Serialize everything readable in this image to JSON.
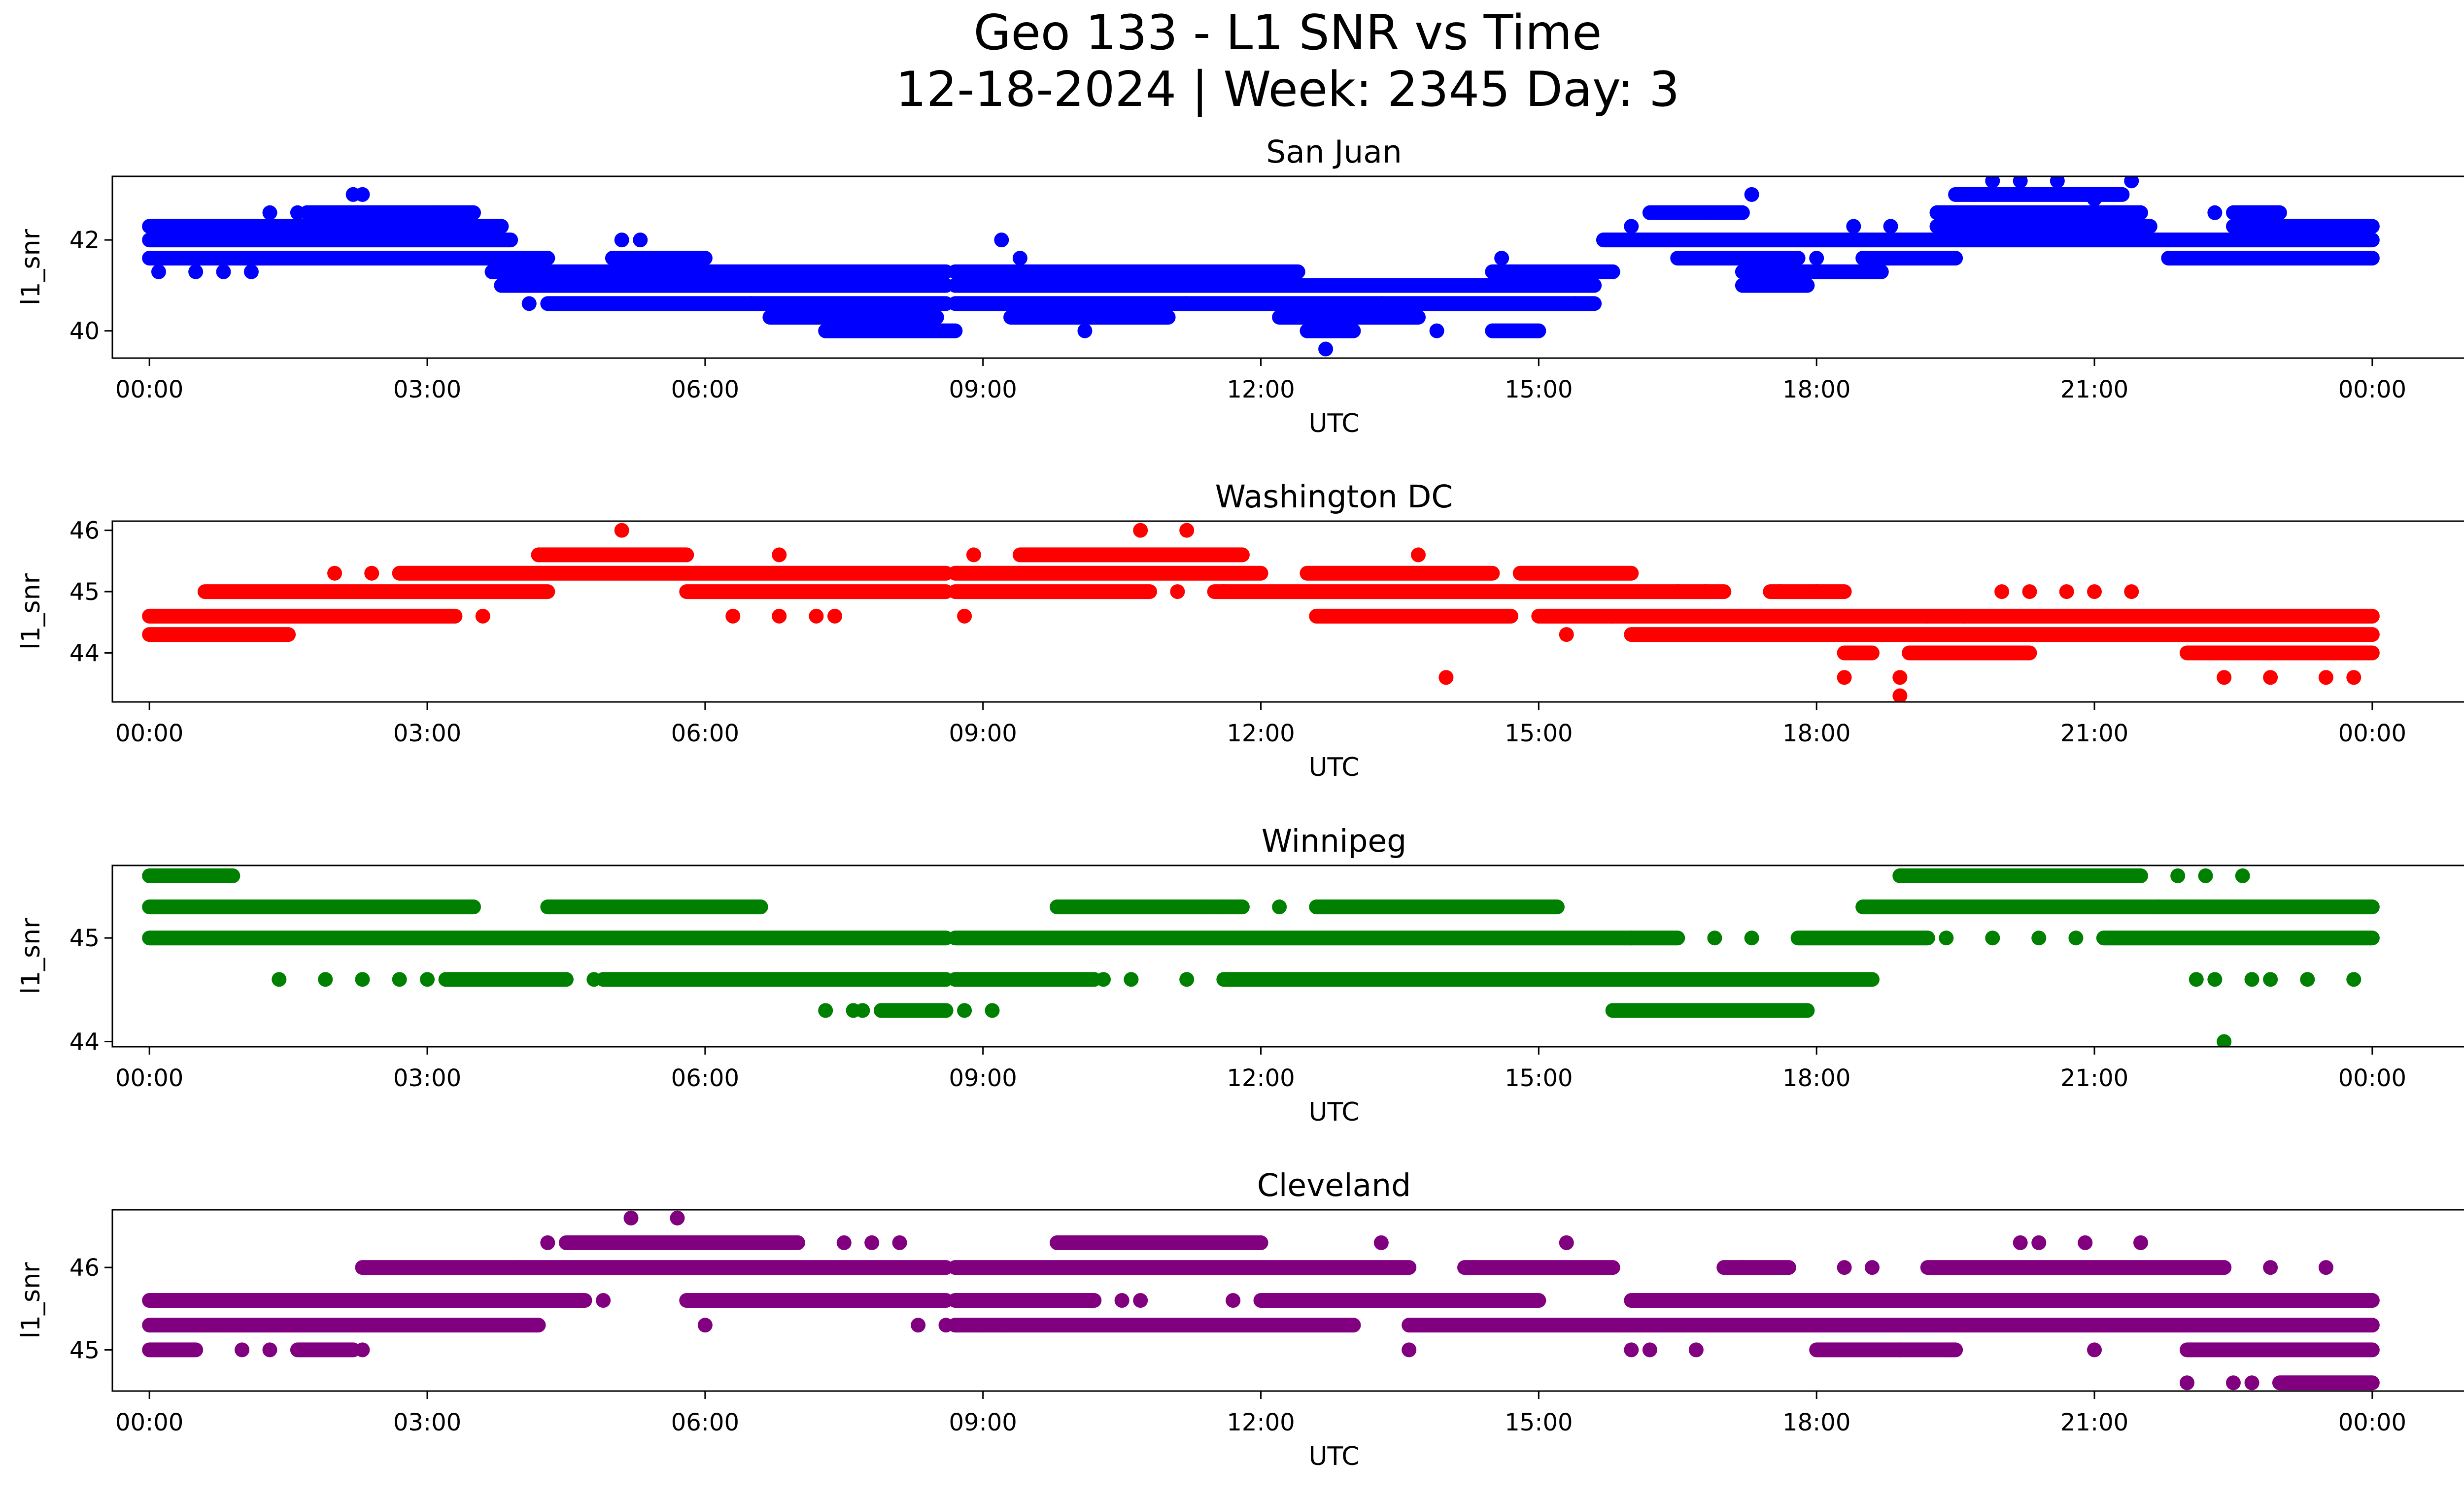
{
  "figure": {
    "title_line1": "Geo 133 - L1 SNR vs Time",
    "title_line2": "12-18-2024 | Week: 2345 Day: 3"
  },
  "chart_data": [
    {
      "type": "scatter",
      "title": "San Juan",
      "xlabel": "UTC",
      "ylabel": "l1_snr",
      "color": "#0000ff",
      "x_unit": "hours UTC",
      "xlim": [
        -0.4,
        25.98
      ],
      "ylim": [
        39.4,
        43.4
      ],
      "xticks": [
        0,
        3,
        6,
        9,
        12,
        15,
        18,
        21,
        24
      ],
      "xtick_labels": [
        "00:00",
        "03:00",
        "06:00",
        "09:00",
        "12:00",
        "15:00",
        "18:00",
        "21:00",
        "00:00"
      ],
      "yticks": [
        40,
        42
      ],
      "ytick_labels": [
        "40",
        "42"
      ],
      "bands": [
        {
          "y": 42.3,
          "segments": [
            [
              0.0,
              3.8
            ],
            [
              19.3,
              21.6
            ],
            [
              22.5,
              24.0
            ]
          ]
        },
        {
          "y": 42.0,
          "segments": [
            [
              0.0,
              3.9
            ],
            [
              15.7,
              24.0
            ]
          ]
        },
        {
          "y": 41.6,
          "segments": [
            [
              0.0,
              4.3
            ],
            [
              5.0,
              6.0
            ],
            [
              16.5,
              17.8
            ],
            [
              18.5,
              19.5
            ],
            [
              21.8,
              24.0
            ]
          ]
        },
        {
          "y": 41.3,
          "segments": [
            [
              3.7,
              8.6
            ],
            [
              8.7,
              12.4
            ],
            [
              14.5,
              15.8
            ],
            [
              17.2,
              18.7
            ]
          ]
        },
        {
          "y": 41.0,
          "segments": [
            [
              3.8,
              8.6
            ],
            [
              8.7,
              15.6
            ],
            [
              17.2,
              17.9
            ]
          ]
        },
        {
          "y": 40.6,
          "segments": [
            [
              4.3,
              8.6
            ],
            [
              8.7,
              15.6
            ]
          ]
        },
        {
          "y": 40.3,
          "segments": [
            [
              6.7,
              8.5
            ],
            [
              9.3,
              11.0
            ],
            [
              12.2,
              13.7
            ]
          ]
        },
        {
          "y": 42.6,
          "segments": [
            [
              1.7,
              3.5
            ],
            [
              16.2,
              17.2
            ],
            [
              19.3,
              21.5
            ],
            [
              22.5,
              23.0
            ]
          ]
        },
        {
          "y": 43.0,
          "segments": [
            [
              19.5,
              21.3
            ]
          ]
        },
        {
          "y": 40.0,
          "segments": [
            [
              7.3,
              8.7
            ],
            [
              12.5,
              13.0
            ],
            [
              14.5,
              15.0
            ]
          ]
        }
      ],
      "points": [
        [
          2.2,
          43.0
        ],
        [
          2.3,
          43.0
        ],
        [
          17.3,
          43.0
        ],
        [
          19.7,
          43.0
        ],
        [
          9.2,
          42.0
        ],
        [
          5.1,
          42.0
        ],
        [
          5.3,
          42.0
        ],
        [
          4.1,
          40.6
        ],
        [
          12.7,
          39.6
        ],
        [
          13.9,
          40.0
        ],
        [
          10.1,
          40.0
        ],
        [
          11.2,
          40.6
        ],
        [
          9.4,
          41.6
        ],
        [
          14.6,
          41.6
        ],
        [
          1.3,
          42.6
        ],
        [
          1.6,
          42.6
        ],
        [
          2.1,
          42.6
        ],
        [
          3.1,
          42.6
        ],
        [
          0.1,
          41.3
        ],
        [
          0.5,
          41.3
        ],
        [
          0.8,
          41.3
        ],
        [
          1.1,
          41.3
        ],
        [
          21.4,
          43.3
        ],
        [
          20.2,
          43.3
        ],
        [
          19.9,
          43.3
        ],
        [
          18.8,
          42.3
        ],
        [
          22.3,
          42.6
        ],
        [
          22.9,
          42.3
        ],
        [
          23.7,
          41.6
        ],
        [
          6.5,
          40.6
        ],
        [
          7.1,
          40.3
        ],
        [
          7.7,
          40.0
        ],
        [
          8.1,
          40.0
        ],
        [
          8.4,
          40.0
        ],
        [
          12.9,
          40.3
        ],
        [
          13.3,
          40.6
        ],
        [
          15.4,
          40.6
        ],
        [
          16.0,
          42.3
        ],
        [
          16.8,
          42.6
        ],
        [
          17.6,
          41.0
        ],
        [
          18.0,
          41.6
        ],
        [
          18.4,
          42.3
        ],
        [
          20.6,
          43.3
        ],
        [
          21.0,
          42.9
        ]
      ]
    },
    {
      "type": "scatter",
      "title": "Washington DC",
      "xlabel": "UTC",
      "ylabel": "l1_snr",
      "color": "#ff0000",
      "x_unit": "hours UTC",
      "xlim": [
        -0.4,
        25.98
      ],
      "ylim": [
        43.2,
        46.15
      ],
      "xticks": [
        0,
        3,
        6,
        9,
        12,
        15,
        18,
        21,
        24
      ],
      "xtick_labels": [
        "00:00",
        "03:00",
        "06:00",
        "09:00",
        "12:00",
        "15:00",
        "18:00",
        "21:00",
        "00:00"
      ],
      "yticks": [
        44,
        45,
        46
      ],
      "ytick_labels": [
        "44",
        "45",
        "46"
      ],
      "bands": [
        {
          "y": 44.6,
          "segments": [
            [
              0.0,
              3.3
            ],
            [
              12.6,
              14.7
            ],
            [
              15.0,
              24.0
            ]
          ]
        },
        {
          "y": 44.3,
          "segments": [
            [
              0.0,
              1.5
            ],
            [
              16.0,
              24.0
            ]
          ]
        },
        {
          "y": 45.0,
          "segments": [
            [
              0.6,
              4.3
            ],
            [
              5.8,
              8.6
            ],
            [
              8.7,
              10.8
            ],
            [
              11.5,
              17.0
            ],
            [
              17.5,
              18.3
            ]
          ]
        },
        {
          "y": 45.3,
          "segments": [
            [
              2.7,
              8.6
            ],
            [
              8.7,
              12.0
            ],
            [
              12.5,
              14.5
            ],
            [
              14.8,
              16.0
            ]
          ]
        },
        {
          "y": 45.6,
          "segments": [
            [
              4.2,
              5.8
            ],
            [
              9.4,
              11.8
            ]
          ]
        },
        {
          "y": 44.0,
          "segments": [
            [
              18.3,
              18.6
            ],
            [
              19.0,
              20.3
            ],
            [
              22.0,
              24.0
            ]
          ]
        }
      ],
      "points": [
        [
          5.1,
          46.0
        ],
        [
          10.7,
          46.0
        ],
        [
          11.2,
          46.0
        ],
        [
          14.0,
          43.6
        ],
        [
          18.3,
          43.6
        ],
        [
          18.9,
          43.6
        ],
        [
          18.9,
          43.3
        ],
        [
          21.0,
          45.0
        ],
        [
          20.3,
          45.0
        ],
        [
          20.0,
          45.0
        ],
        [
          21.4,
          45.0
        ],
        [
          20.7,
          45.0
        ],
        [
          19.2,
          44.6
        ],
        [
          19.6,
          44.6
        ],
        [
          22.4,
          43.6
        ],
        [
          22.9,
          43.6
        ],
        [
          23.5,
          43.6
        ],
        [
          23.8,
          43.6
        ],
        [
          2.0,
          45.3
        ],
        [
          2.4,
          45.3
        ],
        [
          3.6,
          44.6
        ],
        [
          6.3,
          44.6
        ],
        [
          6.8,
          44.6
        ],
        [
          7.2,
          44.6
        ],
        [
          7.4,
          44.6
        ],
        [
          6.8,
          45.6
        ],
        [
          8.8,
          44.6
        ],
        [
          8.9,
          45.6
        ],
        [
          13.7,
          45.6
        ],
        [
          15.3,
          44.3
        ],
        [
          15.8,
          44.6
        ],
        [
          17.6,
          45.0
        ],
        [
          18.0,
          45.0
        ],
        [
          16.5,
          45.0
        ],
        [
          16.8,
          45.0
        ],
        [
          11.1,
          45.0
        ],
        [
          11.6,
          45.0
        ]
      ]
    },
    {
      "type": "scatter",
      "title": "Winnipeg",
      "xlabel": "UTC",
      "ylabel": "l1_snr",
      "color": "#008000",
      "x_unit": "hours UTC",
      "xlim": [
        -0.4,
        25.98
      ],
      "ylim": [
        43.95,
        45.7
      ],
      "xticks": [
        0,
        3,
        6,
        9,
        12,
        15,
        18,
        21,
        24
      ],
      "xtick_labels": [
        "00:00",
        "03:00",
        "06:00",
        "09:00",
        "12:00",
        "15:00",
        "18:00",
        "21:00",
        "00:00"
      ],
      "yticks": [
        44,
        45
      ],
      "ytick_labels": [
        "44",
        "45"
      ],
      "bands": [
        {
          "y": 45.6,
          "segments": [
            [
              0.0,
              0.9
            ],
            [
              18.9,
              21.5
            ]
          ]
        },
        {
          "y": 45.3,
          "segments": [
            [
              0.0,
              3.5
            ],
            [
              4.3,
              6.6
            ],
            [
              9.8,
              11.8
            ],
            [
              12.6,
              15.2
            ],
            [
              18.5,
              24.0
            ]
          ]
        },
        {
          "y": 45.0,
          "segments": [
            [
              0.0,
              8.6
            ],
            [
              8.7,
              16.5
            ],
            [
              17.8,
              19.2
            ],
            [
              21.1,
              24.0
            ]
          ]
        },
        {
          "y": 44.6,
          "segments": [
            [
              3.2,
              4.5
            ],
            [
              4.9,
              8.6
            ],
            [
              8.7,
              10.2
            ],
            [
              11.6,
              18.6
            ]
          ]
        },
        {
          "y": 44.3,
          "segments": [
            [
              7.9,
              8.6
            ],
            [
              15.8,
              17.9
            ]
          ]
        }
      ],
      "points": [
        [
          1.4,
          44.6
        ],
        [
          1.9,
          44.6
        ],
        [
          2.3,
          44.6
        ],
        [
          2.7,
          44.6
        ],
        [
          3.0,
          44.6
        ],
        [
          4.8,
          44.6
        ],
        [
          5.5,
          44.6
        ],
        [
          7.3,
          44.3
        ],
        [
          7.6,
          44.3
        ],
        [
          7.7,
          44.3
        ],
        [
          9.1,
          44.3
        ],
        [
          8.8,
          44.3
        ],
        [
          10.3,
          44.6
        ],
        [
          10.6,
          44.6
        ],
        [
          11.2,
          44.6
        ],
        [
          12.2,
          45.3
        ],
        [
          11.4,
          45.3
        ],
        [
          11.6,
          45.3
        ],
        [
          16.0,
          45.0
        ],
        [
          16.9,
          45.0
        ],
        [
          17.3,
          45.0
        ],
        [
          19.4,
          45.0
        ],
        [
          19.9,
          45.0
        ],
        [
          20.4,
          45.0
        ],
        [
          20.8,
          45.0
        ],
        [
          22.1,
          44.6
        ],
        [
          22.3,
          44.6
        ],
        [
          22.7,
          44.6
        ],
        [
          22.9,
          44.6
        ],
        [
          23.3,
          44.6
        ],
        [
          23.8,
          44.6
        ],
        [
          22.4,
          44.0
        ],
        [
          21.9,
          45.6
        ],
        [
          22.2,
          45.6
        ],
        [
          22.6,
          45.6
        ],
        [
          18.9,
          45.6
        ],
        [
          21.7,
          45.3
        ],
        [
          16.8,
          44.6
        ],
        [
          17.5,
          44.3
        ]
      ]
    },
    {
      "type": "scatter",
      "title": "Cleveland",
      "xlabel": "UTC",
      "ylabel": "l1_snr",
      "color": "#800080",
      "x_unit": "hours UTC",
      "xlim": [
        -0.4,
        25.98
      ],
      "ylim": [
        44.5,
        46.7
      ],
      "xticks": [
        0,
        3,
        6,
        9,
        12,
        15,
        18,
        21,
        24
      ],
      "xtick_labels": [
        "00:00",
        "03:00",
        "06:00",
        "09:00",
        "12:00",
        "15:00",
        "18:00",
        "21:00",
        "00:00"
      ],
      "yticks": [
        45,
        46
      ],
      "ytick_labels": [
        "45",
        "46"
      ],
      "bands": [
        {
          "y": 45.6,
          "segments": [
            [
              0.0,
              4.7
            ],
            [
              5.8,
              8.6
            ],
            [
              8.7,
              10.2
            ],
            [
              12.0,
              15.0
            ],
            [
              16.0,
              24.0
            ]
          ]
        },
        {
          "y": 45.3,
          "segments": [
            [
              0.0,
              4.2
            ],
            [
              8.7,
              13.0
            ],
            [
              13.6,
              24.0
            ]
          ]
        },
        {
          "y": 45.0,
          "segments": [
            [
              0.0,
              0.5
            ],
            [
              1.6,
              2.2
            ],
            [
              18.0,
              19.5
            ],
            [
              22.0,
              24.0
            ]
          ]
        },
        {
          "y": 46.0,
          "segments": [
            [
              2.3,
              4.0
            ],
            [
              4.0,
              8.6
            ],
            [
              8.7,
              13.6
            ],
            [
              14.2,
              15.8
            ],
            [
              17.0,
              17.7
            ],
            [
              19.2,
              22.4
            ]
          ]
        },
        {
          "y": 46.3,
          "segments": [
            [
              4.5,
              7.0
            ],
            [
              9.8,
              12.0
            ]
          ]
        },
        {
          "y": 44.6,
          "segments": [
            [
              23.0,
              24.0
            ]
          ]
        }
      ],
      "points": [
        [
          5.2,
          46.6
        ],
        [
          5.7,
          46.6
        ],
        [
          6.0,
          45.3
        ],
        [
          4.9,
          45.6
        ],
        [
          4.3,
          46.3
        ],
        [
          7.5,
          46.3
        ],
        [
          7.8,
          46.3
        ],
        [
          8.1,
          46.3
        ],
        [
          8.3,
          45.3
        ],
        [
          8.6,
          45.3
        ],
        [
          9.2,
          45.3
        ],
        [
          9.0,
          45.3
        ],
        [
          10.7,
          45.6
        ],
        [
          10.5,
          45.6
        ],
        [
          11.7,
          45.6
        ],
        [
          13.6,
          45.0
        ],
        [
          13.3,
          46.3
        ],
        [
          15.3,
          46.3
        ],
        [
          16.2,
          45.0
        ],
        [
          16.7,
          45.0
        ],
        [
          16.0,
          45.0
        ],
        [
          18.3,
          46.0
        ],
        [
          18.6,
          46.0
        ],
        [
          20.4,
          46.3
        ],
        [
          20.9,
          46.3
        ],
        [
          21.5,
          46.3
        ],
        [
          20.2,
          46.3
        ],
        [
          22.0,
          44.6
        ],
        [
          22.5,
          44.6
        ],
        [
          22.7,
          44.6
        ],
        [
          23.5,
          46.0
        ],
        [
          2.3,
          45.0
        ],
        [
          1.0,
          45.0
        ],
        [
          1.3,
          45.0
        ],
        [
          0.2,
          45.6
        ],
        [
          0.4,
          45.6
        ],
        [
          17.2,
          46.0
        ],
        [
          19.4,
          45.0
        ],
        [
          21.0,
          45.0
        ],
        [
          18.9,
          45.0
        ],
        [
          22.9,
          46.0
        ],
        [
          22.4,
          46.0
        ],
        [
          12.9,
          45.6
        ],
        [
          14.3,
          46.0
        ]
      ]
    }
  ]
}
